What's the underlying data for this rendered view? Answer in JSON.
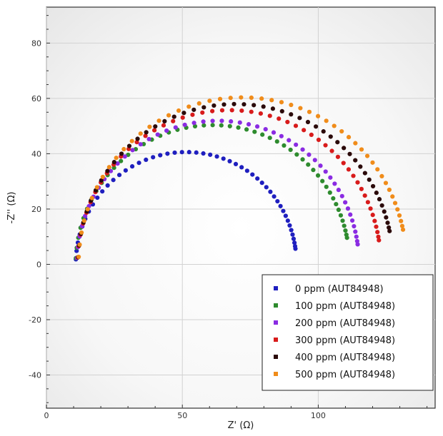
{
  "chart_data": {
    "type": "scatter",
    "title": "",
    "xlabel": "Z' (Ω)",
    "ylabel": "-Z'' (Ω)",
    "xlim": [
      0,
      143
    ],
    "ylim": [
      -52,
      93
    ],
    "xticks": [
      0,
      50,
      100
    ],
    "yticks": [
      -40,
      -20,
      0,
      20,
      40,
      60,
      80
    ],
    "grid": true,
    "legend_position": "bottom-right",
    "series": [
      {
        "name": "0 ppm (AUT84948)",
        "color": "#1f1fbf",
        "r0": 10.8,
        "r1": 92,
        "start_angle_deg": 8
      },
      {
        "name": "100 ppm (AUT84948)",
        "color": "#2e8b2e",
        "r0": 10.8,
        "r1": 111.5,
        "start_angle_deg": 11
      },
      {
        "name": "200 ppm (AUT84948)",
        "color": "#8a2be2",
        "r0": 11.2,
        "r1": 115,
        "start_angle_deg": 8
      },
      {
        "name": "300 ppm (AUT84948)",
        "color": "#d81b1b",
        "r0": 11.5,
        "r1": 123,
        "start_angle_deg": 9
      },
      {
        "name": "400 ppm (AUT84948)",
        "color": "#2b0a0a",
        "r0": 11.6,
        "r1": 127.5,
        "start_angle_deg": 12
      },
      {
        "name": "500 ppm (AUT84948)",
        "color": "#f08c1a",
        "r0": 11.8,
        "r1": 132.5,
        "start_angle_deg": 12
      }
    ]
  }
}
